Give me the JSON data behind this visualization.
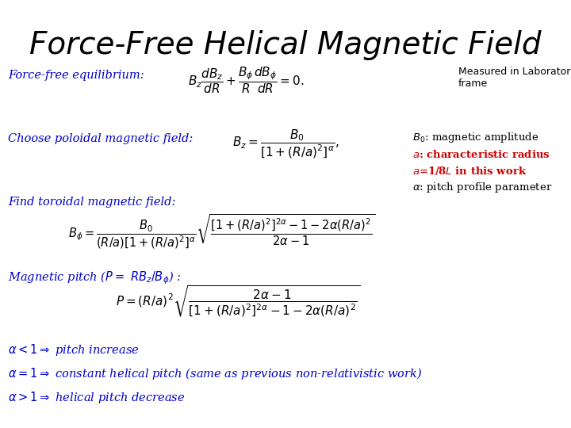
{
  "title": "Force-Free Helical Magnetic Field",
  "bg_color": "#ffffff",
  "title_color": "#000000",
  "title_fontsize": 28,
  "blue_color": "#0000cc",
  "red_color": "#cc0000",
  "black_color": "#000000",
  "label_forcefree": "Force-free equilibrium:",
  "label_choose": "Choose poloidal magnetic field:",
  "label_find": "Find toroidal magnetic field:",
  "label_pitch": "Magnetic pitch ($P{=}$ $RB_z/B_\\phi$) :",
  "label_measured": "Measured in Laboratory\nframe",
  "annotation_B0": "$B_0$: magnetic amplitude",
  "annotation_a": "$a$: characteristic radius",
  "annotation_a_val": "$a$=1/8$L$ in this work",
  "annotation_alpha": "$\\alpha$: pitch profile parameter",
  "eq_forcefree": "$B_z\\dfrac{dB_z}{dR} + \\dfrac{B_\\phi}{R}\\dfrac{dB_\\phi}{dR} = 0.$",
  "eq_poloidal": "$B_z = \\dfrac{B_0}{[1+(R/a)^2]^\\alpha},$",
  "eq_toroidal": "$B_\\phi = \\dfrac{B_0}{(R/a)[1+(R/a)^2]^\\alpha}\\sqrt{\\dfrac{[1+(R/a)^2]^{2\\alpha}-1-2\\alpha(R/a)^2}{2\\alpha - 1}}$",
  "eq_pitch": "$P = (R/a)^2\\sqrt{\\dfrac{2\\alpha-1}{[1+(R/a)^2]^{2\\alpha}-1-2\\alpha(R/a)^2}}$",
  "line1": "$\\alpha < 1 \\Rightarrow$ pitch increase",
  "line2": "$\\alpha{=}1 \\Rightarrow$ constant helical pitch (same as previous non-relativistic work)",
  "line3": "$\\alpha > 1 \\Rightarrow$ helical pitch decrease"
}
